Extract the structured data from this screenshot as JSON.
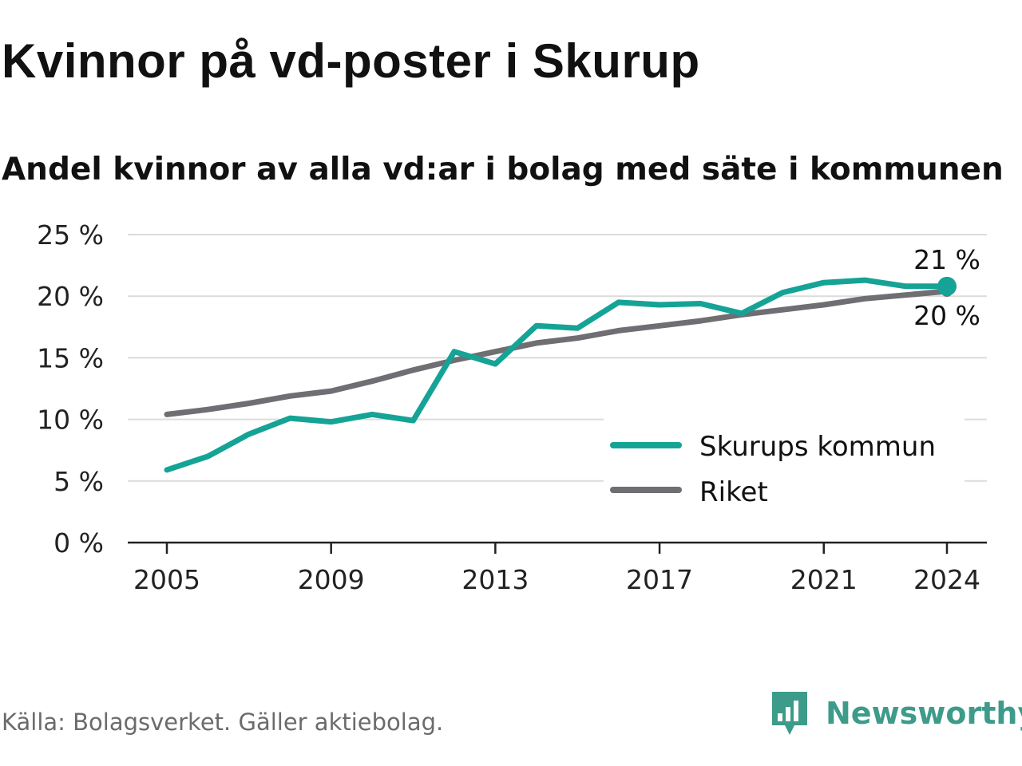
{
  "header": {
    "title": "Kvinnor på vd-poster i Skurup",
    "subtitle": "Andel kvinnor av alla vd:ar i bolag med säte i kommunen"
  },
  "footer": {
    "source": "Källa: Bolagsverket. Gäller aktiebolag.",
    "brand": "Newsworthy",
    "brand_icon": "bar-chart-speech-bubble-icon"
  },
  "chart_data": {
    "type": "line",
    "title": "Kvinnor på vd-poster i Skurup",
    "subtitle": "Andel kvinnor av alla vd:ar i bolag med säte i kommunen",
    "xlabel": "",
    "ylabel": "",
    "x": [
      2005,
      2006,
      2007,
      2008,
      2009,
      2010,
      2011,
      2012,
      2013,
      2014,
      2015,
      2016,
      2017,
      2018,
      2019,
      2020,
      2021,
      2022,
      2023,
      2024
    ],
    "x_ticks": [
      "2005",
      "2009",
      "2013",
      "2017",
      "2021",
      "2024"
    ],
    "x_tick_values": [
      2005,
      2009,
      2013,
      2017,
      2021,
      2024
    ],
    "ylim": [
      0,
      25
    ],
    "y_ticks": [
      0,
      5,
      10,
      15,
      20,
      25
    ],
    "y_tick_labels": [
      "0 %",
      "5 %",
      "10 %",
      "15 %",
      "20 %",
      "25 %"
    ],
    "grid": true,
    "legend_position": "bottom-right",
    "series": [
      {
        "name": "Skurups kommun",
        "color": "#15a396",
        "values": [
          5.9,
          7.0,
          8.8,
          10.1,
          9.8,
          10.4,
          9.9,
          15.5,
          14.5,
          17.6,
          17.4,
          19.5,
          19.3,
          19.4,
          18.6,
          20.3,
          21.1,
          21.3,
          20.8,
          20.8
        ],
        "end_label": "21 %"
      },
      {
        "name": "Riket",
        "color": "#6e6e73",
        "values": [
          10.4,
          10.8,
          11.3,
          11.9,
          12.3,
          13.1,
          14.0,
          14.8,
          15.5,
          16.2,
          16.6,
          17.2,
          17.6,
          18.0,
          18.5,
          18.9,
          19.3,
          19.8,
          20.1,
          20.4
        ],
        "end_label": "20 %"
      }
    ]
  }
}
